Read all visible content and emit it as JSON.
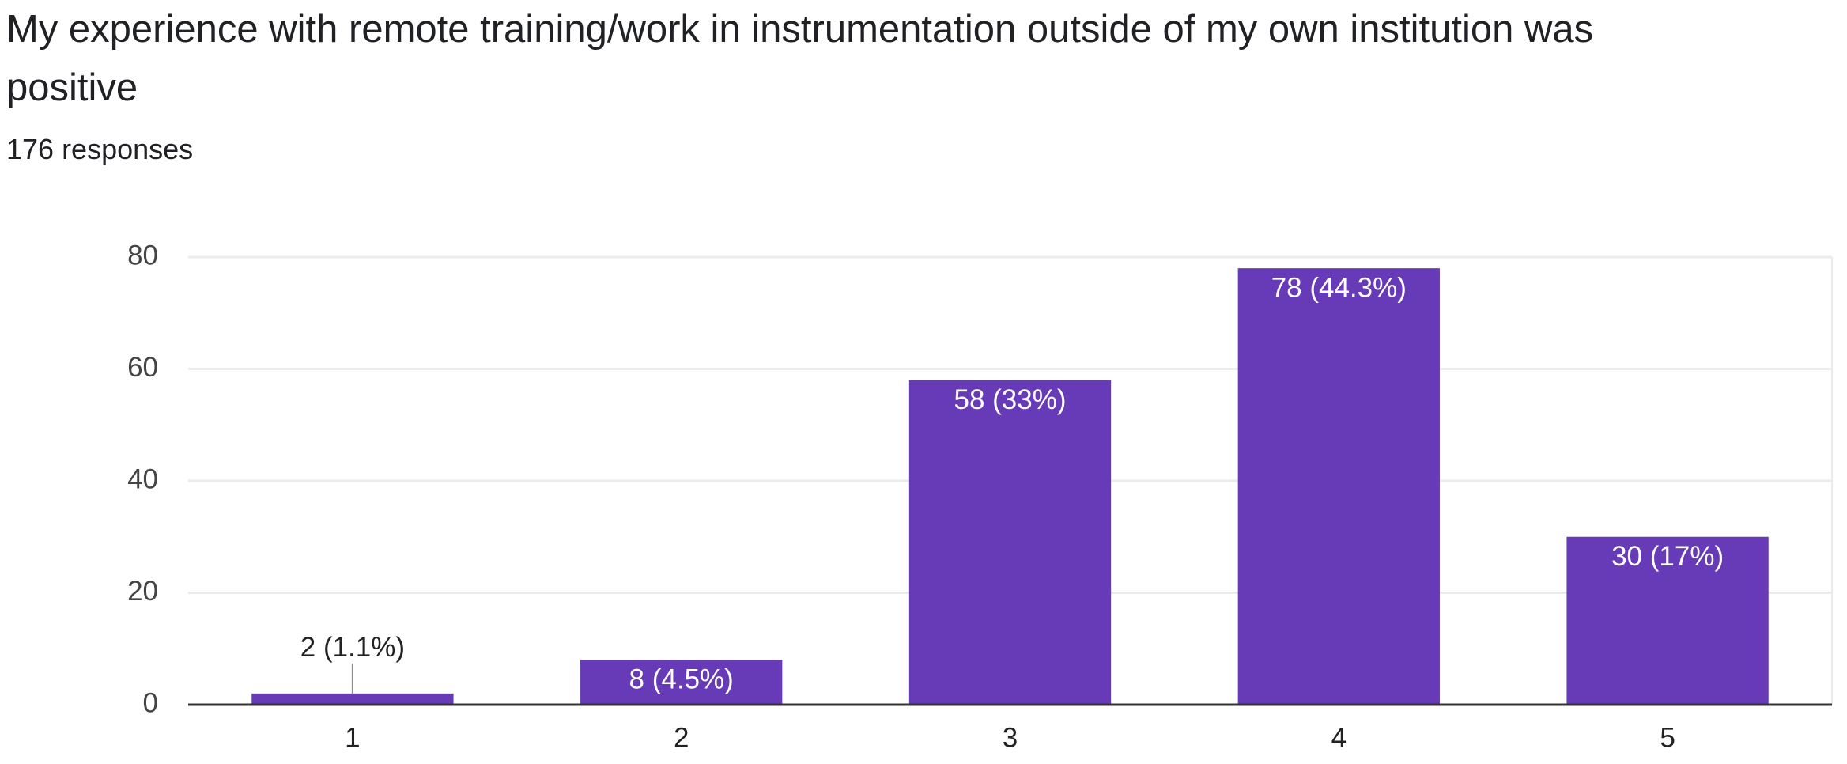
{
  "chart_data": {
    "type": "bar",
    "title": "My experience with remote training/work in instrumentation outside of my own institution was positive",
    "subtitle": "176 responses",
    "categories": [
      "1",
      "2",
      "3",
      "4",
      "5"
    ],
    "values": [
      2,
      8,
      58,
      78,
      30
    ],
    "value_labels": [
      "2 (1.1%)",
      "8 (4.5%)",
      "58 (33%)",
      "78 (44.3%)",
      "30 (17%)"
    ],
    "color": "#673ab7",
    "ylim": [
      0,
      80
    ],
    "yticks": [
      0,
      20,
      40,
      60,
      80
    ],
    "grid": true
  }
}
